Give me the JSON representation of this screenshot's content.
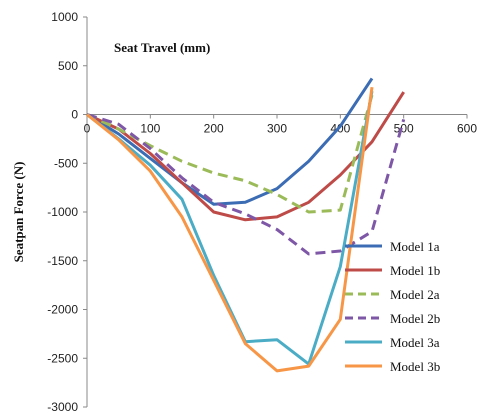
{
  "chart_data": {
    "type": "line",
    "xlabel": "Seat Travel  (mm)",
    "ylabel": "Seatpan Force (N)",
    "xlim": [
      0,
      600
    ],
    "ylim": [
      -3000,
      1000
    ],
    "xticks": [
      0,
      100,
      200,
      300,
      400,
      500,
      600
    ],
    "yticks": [
      1000,
      500,
      0,
      -500,
      -1000,
      -1500,
      -2000,
      -2500,
      -3000
    ],
    "grid": false,
    "legend_position": "right",
    "series": [
      {
        "name": "Model 1a",
        "color": "#3B6CB4",
        "dash": "solid",
        "points": [
          [
            0,
            0
          ],
          [
            50,
            -200
          ],
          [
            100,
            -450
          ],
          [
            150,
            -700
          ],
          [
            200,
            -920
          ],
          [
            250,
            -900
          ],
          [
            300,
            -760
          ],
          [
            350,
            -480
          ],
          [
            400,
            -120
          ],
          [
            450,
            370
          ]
        ]
      },
      {
        "name": "Model 1b",
        "color": "#BE4B48",
        "dash": "solid",
        "points": [
          [
            0,
            0
          ],
          [
            50,
            -150
          ],
          [
            100,
            -400
          ],
          [
            150,
            -700
          ],
          [
            200,
            -1000
          ],
          [
            250,
            -1080
          ],
          [
            300,
            -1050
          ],
          [
            350,
            -900
          ],
          [
            400,
            -620
          ],
          [
            450,
            -280
          ],
          [
            500,
            230
          ]
        ]
      },
      {
        "name": "Model 2a",
        "color": "#9BBB59",
        "dash": "dashed",
        "points": [
          [
            0,
            0
          ],
          [
            50,
            -150
          ],
          [
            100,
            -320
          ],
          [
            150,
            -480
          ],
          [
            200,
            -600
          ],
          [
            250,
            -680
          ],
          [
            300,
            -820
          ],
          [
            350,
            -1000
          ],
          [
            400,
            -980
          ],
          [
            450,
            200
          ]
        ]
      },
      {
        "name": "Model 2b",
        "color": "#7E57A7",
        "dash": "dashed",
        "points": [
          [
            0,
            0
          ],
          [
            50,
            -100
          ],
          [
            100,
            -350
          ],
          [
            150,
            -650
          ],
          [
            200,
            -900
          ],
          [
            250,
            -1020
          ],
          [
            300,
            -1180
          ],
          [
            350,
            -1430
          ],
          [
            400,
            -1400
          ],
          [
            450,
            -1200
          ],
          [
            500,
            -50
          ]
        ]
      },
      {
        "name": "Model 3a",
        "color": "#4BACC6",
        "dash": "solid",
        "points": [
          [
            0,
            0
          ],
          [
            50,
            -250
          ],
          [
            100,
            -520
          ],
          [
            150,
            -870
          ],
          [
            200,
            -1650
          ],
          [
            250,
            -2330
          ],
          [
            300,
            -2310
          ],
          [
            350,
            -2560
          ],
          [
            400,
            -1560
          ],
          [
            450,
            240
          ]
        ]
      },
      {
        "name": "Model 3b",
        "color": "#F79646",
        "dash": "solid",
        "points": [
          [
            0,
            0
          ],
          [
            50,
            -260
          ],
          [
            100,
            -580
          ],
          [
            150,
            -1050
          ],
          [
            200,
            -1700
          ],
          [
            250,
            -2350
          ],
          [
            300,
            -2630
          ],
          [
            350,
            -2580
          ],
          [
            400,
            -2100
          ],
          [
            450,
            280
          ]
        ]
      }
    ]
  }
}
